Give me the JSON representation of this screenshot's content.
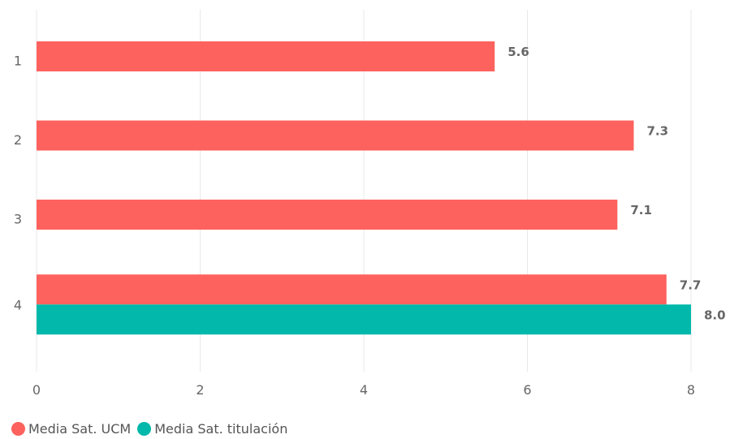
{
  "chart_data": {
    "type": "bar",
    "orientation": "horizontal",
    "categories": [
      "1",
      "2",
      "3",
      "4"
    ],
    "series": [
      {
        "name": "Media Sat. UCM",
        "color": "#fd625e",
        "values": [
          5.6,
          7.3,
          7.1,
          7.7
        ]
      },
      {
        "name": "Media Sat. titulación",
        "color": "#01b8aa",
        "values": [
          null,
          null,
          null,
          8.0
        ]
      }
    ],
    "data_labels": [
      [
        "5.6",
        "7.3",
        "7.1",
        "7.7"
      ],
      [
        null,
        null,
        null,
        "8.0"
      ]
    ],
    "x_ticks": [
      0,
      2,
      4,
      6,
      8
    ],
    "xlim": [
      0,
      8
    ],
    "grid": true,
    "legend_position": "bottom-left",
    "title": "",
    "xlabel": "",
    "ylabel": ""
  }
}
